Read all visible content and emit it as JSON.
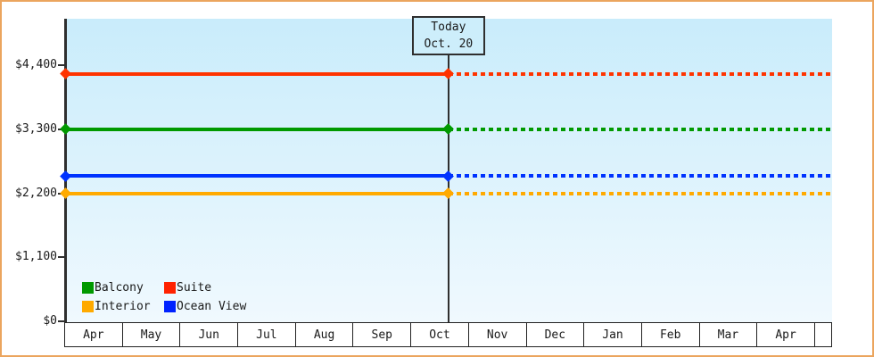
{
  "chart_data": {
    "type": "line",
    "title": "",
    "x_categories": [
      "Apr",
      "May",
      "Jun",
      "Jul",
      "Aug",
      "Sep",
      "Oct",
      "Nov",
      "Dec",
      "Jan",
      "Feb",
      "Mar",
      "Apr"
    ],
    "y_ticks": {
      "labels": [
        "$0",
        "$1,100",
        "$2,200",
        "$3,300",
        "$4,400"
      ],
      "values": [
        0,
        1100,
        2200,
        3300,
        4400
      ]
    },
    "ylim": [
      0,
      5200
    ],
    "grid": "off",
    "today": {
      "line1": "Today",
      "line2": "Oct. 20",
      "month_index": 6,
      "day_fraction": 0.645
    },
    "series": [
      {
        "name": "Suite",
        "color": "#ff3300",
        "value": 4250,
        "style_before_today": "solid",
        "style_after_today": "dotted"
      },
      {
        "name": "Balcony",
        "color": "#009900",
        "value": 3300,
        "style_before_today": "solid",
        "style_after_today": "dotted"
      },
      {
        "name": "Ocean View",
        "color": "#0033ff",
        "value": 2500,
        "style_before_today": "solid",
        "style_after_today": "dotted"
      },
      {
        "name": "Interior",
        "color": "#ffaa00",
        "value": 2200,
        "style_before_today": "solid",
        "style_after_today": "dotted"
      }
    ],
    "legend": {
      "position": "bottom-left",
      "items": [
        {
          "label": "Balcony",
          "color": "#009900"
        },
        {
          "label": "Suite",
          "color": "#ff2200"
        },
        {
          "label": "Interior",
          "color": "#ffaa00"
        },
        {
          "label": "Ocean View",
          "color": "#0022ff"
        }
      ]
    }
  },
  "colors": {
    "frame_border": "#eba55e",
    "axis": "#2f2f2f",
    "plot_gradient_top": "#c9ecfb",
    "plot_gradient_bottom": "#f0f9fe",
    "today_box_bg": "#cdeefb",
    "month_cell_bg": "#ffffff",
    "text": "#1a1a1a"
  }
}
